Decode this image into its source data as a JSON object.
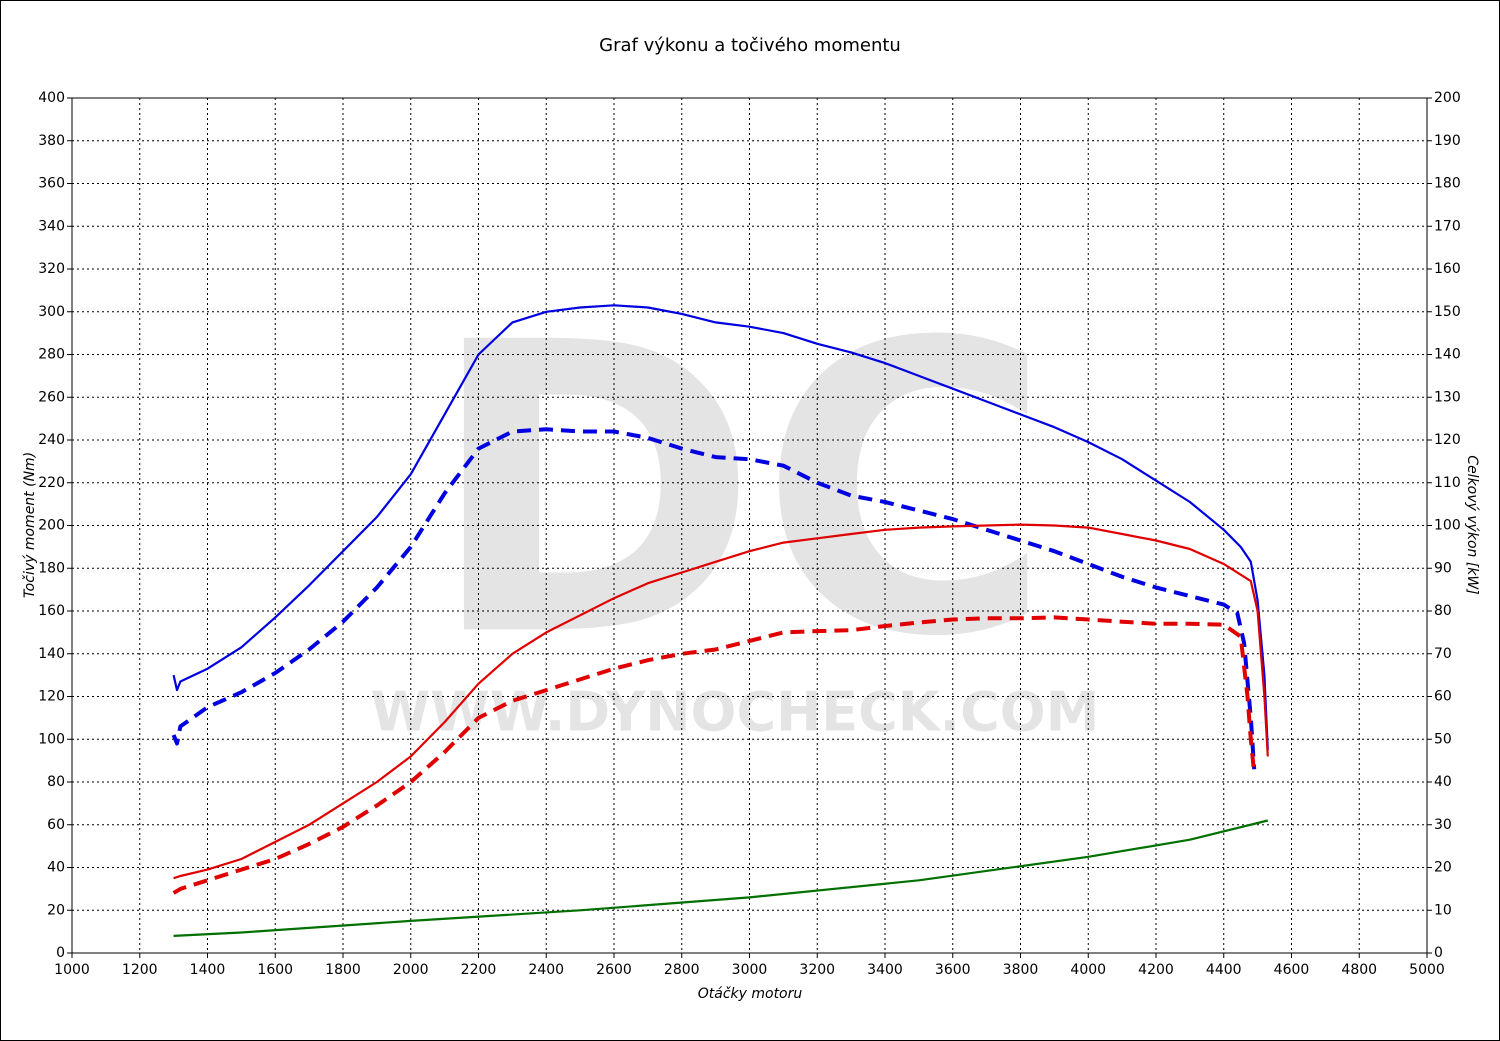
{
  "chart_data": {
    "type": "line",
    "title": "Graf výkonu a točivého momentu",
    "xlabel": "Otáčky motoru",
    "ylabel": "Točivý moment (Nm)",
    "y2label": "Celkový výkon [kW]",
    "watermark": [
      "DC",
      "WWW.DYNOCHECK.COM"
    ],
    "xlim": [
      1000,
      5000
    ],
    "xticks": [
      1000,
      1200,
      1400,
      1600,
      1800,
      2000,
      2200,
      2400,
      2600,
      2800,
      3000,
      3200,
      3400,
      3600,
      3800,
      4000,
      4200,
      4400,
      4600,
      4800,
      5000
    ],
    "ylim": [
      0,
      400
    ],
    "yticks": [
      0,
      20,
      40,
      60,
      80,
      100,
      120,
      140,
      160,
      180,
      200,
      220,
      240,
      260,
      280,
      300,
      320,
      340,
      360,
      380,
      400
    ],
    "y2lim": [
      0,
      200
    ],
    "y2ticks": [
      0,
      10,
      20,
      30,
      40,
      50,
      60,
      70,
      80,
      90,
      100,
      110,
      120,
      130,
      140,
      150,
      160,
      170,
      180,
      190,
      200
    ],
    "grid": true,
    "series": [
      {
        "color": "#0000e0",
        "dashed": false,
        "x": [
          1300,
          1310,
          1320,
          1400,
          1500,
          1600,
          1700,
          1800,
          1900,
          2000,
          2100,
          2200,
          2300,
          2400,
          2500,
          2600,
          2700,
          2800,
          2900,
          3000,
          3100,
          3200,
          3300,
          3400,
          3500,
          3600,
          3700,
          3800,
          3900,
          4000,
          4100,
          4200,
          4300,
          4400,
          4450,
          4480,
          4500,
          4520,
          4530
        ],
        "values": [
          130,
          123,
          127,
          133,
          143,
          157,
          172,
          188,
          204,
          224,
          252,
          280,
          295,
          300,
          302,
          303,
          302,
          299,
          295,
          293,
          290,
          285,
          281,
          276,
          270,
          264,
          258,
          252,
          246,
          239,
          231,
          221,
          211,
          198,
          190,
          183,
          165,
          130,
          95
        ]
      },
      {
        "color": "#0000e0",
        "dashed": true,
        "x": [
          1300,
          1310,
          1320,
          1400,
          1500,
          1600,
          1700,
          1800,
          1900,
          2000,
          2100,
          2200,
          2300,
          2400,
          2500,
          2600,
          2700,
          2800,
          2900,
          3000,
          3100,
          3200,
          3300,
          3400,
          3500,
          3600,
          3700,
          3800,
          3900,
          4000,
          4100,
          4200,
          4300,
          4400,
          4440,
          4460,
          4480,
          4490
        ],
        "values": [
          102,
          98,
          106,
          115,
          122,
          131,
          142,
          155,
          171,
          190,
          215,
          236,
          244,
          245,
          244,
          244,
          241,
          236,
          232,
          231,
          228,
          220,
          214,
          211,
          207,
          203,
          198,
          193,
          188,
          182,
          176,
          171,
          167,
          163,
          159,
          145,
          110,
          86
        ]
      },
      {
        "color": "#e00000",
        "dashed": false,
        "axis": "y2",
        "x": [
          1300,
          1320,
          1400,
          1500,
          1600,
          1700,
          1800,
          1900,
          2000,
          2100,
          2200,
          2300,
          2400,
          2500,
          2600,
          2700,
          2800,
          2900,
          3000,
          3100,
          3200,
          3300,
          3400,
          3500,
          3600,
          3700,
          3800,
          3900,
          4000,
          4100,
          4200,
          4300,
          4400,
          4480,
          4500,
          4520,
          4530
        ],
        "values": [
          17.5,
          18,
          19.5,
          22,
          26,
          30,
          35,
          40,
          46,
          54,
          63,
          70,
          75,
          79,
          83,
          86.5,
          89,
          91.5,
          94,
          96,
          97,
          98,
          99,
          99.5,
          99.8,
          100,
          100.2,
          100,
          99.5,
          98,
          96.5,
          94.5,
          91,
          87,
          80,
          60,
          46
        ]
      },
      {
        "color": "#e00000",
        "dashed": true,
        "axis": "y2",
        "x": [
          1300,
          1320,
          1400,
          1500,
          1600,
          1700,
          1800,
          1900,
          2000,
          2100,
          2200,
          2300,
          2400,
          2500,
          2600,
          2700,
          2800,
          2900,
          3000,
          3100,
          3200,
          3300,
          3400,
          3500,
          3600,
          3700,
          3800,
          3900,
          4000,
          4100,
          4200,
          4300,
          4400,
          4450,
          4470,
          4480,
          4490
        ],
        "values": [
          14,
          15,
          17,
          19.5,
          22,
          25.5,
          29.5,
          34.5,
          40,
          47,
          55,
          59,
          61.5,
          64,
          66.5,
          68.5,
          70,
          71,
          73,
          75,
          75.3,
          75.5,
          76.5,
          77.3,
          78,
          78.3,
          78.3,
          78.5,
          78,
          77.5,
          77,
          77,
          76.8,
          74,
          60,
          50,
          42
        ]
      },
      {
        "color": "#007000",
        "dashed": false,
        "axis": "y2",
        "x": [
          1300,
          1500,
          2000,
          2500,
          3000,
          3500,
          4000,
          4300,
          4530
        ],
        "values": [
          4,
          4.8,
          7.5,
          10,
          13,
          17,
          22.5,
          26.5,
          31
        ]
      }
    ]
  }
}
